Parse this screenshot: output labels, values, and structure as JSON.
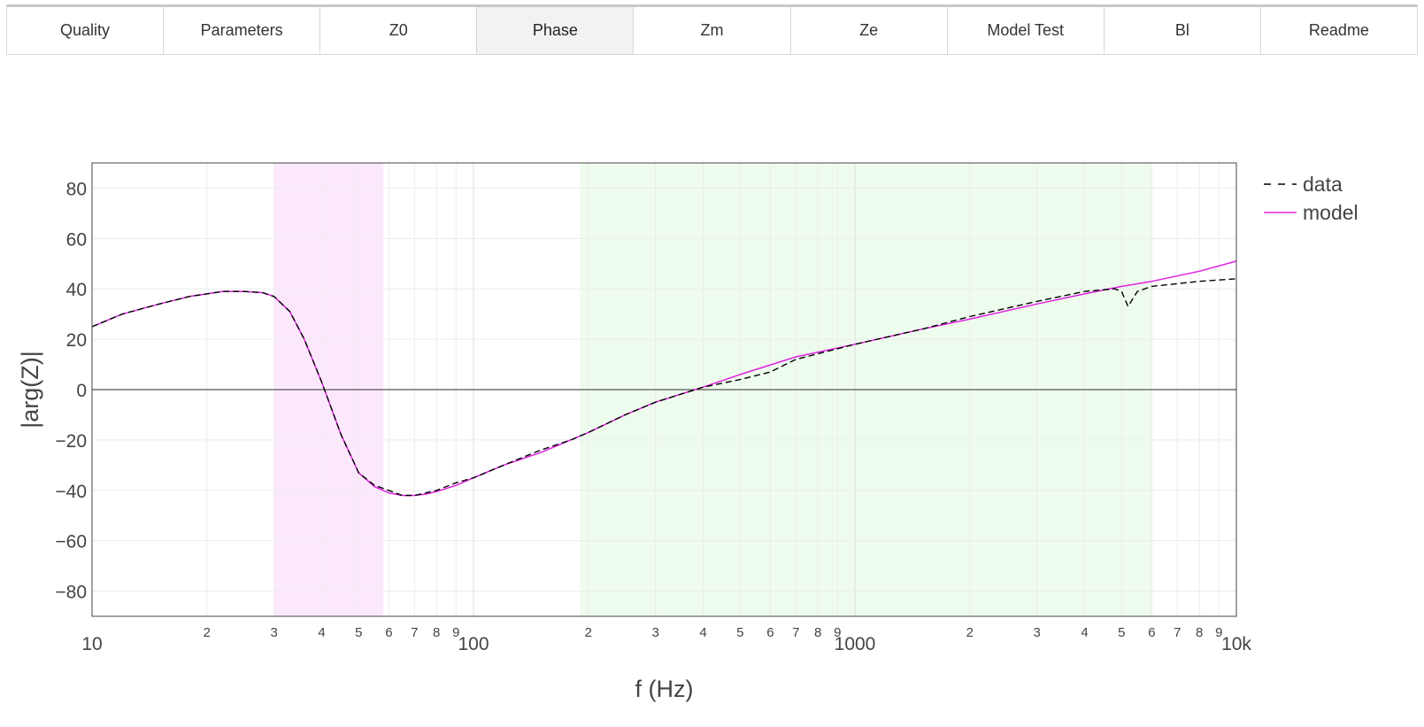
{
  "tabs": [
    {
      "label": "Quality",
      "active": false
    },
    {
      "label": "Parameters",
      "active": false
    },
    {
      "label": "Z0",
      "active": false
    },
    {
      "label": "Phase",
      "active": true
    },
    {
      "label": "Zm",
      "active": false
    },
    {
      "label": "Ze",
      "active": false
    },
    {
      "label": "Model Test",
      "active": false
    },
    {
      "label": "Bl",
      "active": false
    },
    {
      "label": "Readme",
      "active": false
    }
  ],
  "chart_data": {
    "type": "line",
    "title": "",
    "xlabel": "f (Hz)",
    "ylabel": "|arg(Z)|",
    "xscale": "log",
    "xlim": [
      10,
      10000
    ],
    "ylim": [
      -90,
      90
    ],
    "grid": true,
    "legend_position": "top-right",
    "x_major_ticks": [
      {
        "value": 10,
        "label": "10"
      },
      {
        "value": 100,
        "label": "100"
      },
      {
        "value": 1000,
        "label": "1000"
      },
      {
        "value": 10000,
        "label": "10k"
      }
    ],
    "x_minor_tick_labels": [
      "2",
      "3",
      "4",
      "5",
      "6",
      "7",
      "8",
      "9"
    ],
    "y_ticks": [
      {
        "value": 80,
        "label": "80"
      },
      {
        "value": 60,
        "label": "60"
      },
      {
        "value": 40,
        "label": "40"
      },
      {
        "value": 20,
        "label": "20"
      },
      {
        "value": 0,
        "label": "0"
      },
      {
        "value": -20,
        "label": "−20"
      },
      {
        "value": -40,
        "label": "−40"
      },
      {
        "value": -60,
        "label": "−60"
      },
      {
        "value": -80,
        "label": "−80"
      }
    ],
    "shaded_regions": [
      {
        "x0": 30,
        "x1": 58,
        "color": "#fce8fc"
      },
      {
        "x0": 190,
        "x1": 6000,
        "color": "#eefcee"
      }
    ],
    "series": [
      {
        "name": "model",
        "color": "#e020e0",
        "dash": "solid",
        "x": [
          10,
          12,
          15,
          18,
          20,
          22,
          25,
          28,
          30,
          33,
          36,
          40,
          45,
          50,
          55,
          60,
          65,
          70,
          75,
          80,
          90,
          100,
          120,
          150,
          200,
          250,
          300,
          400,
          500,
          700,
          1000,
          1500,
          2000,
          3000,
          4000,
          5000,
          6000,
          8000,
          10000
        ],
        "y": [
          25,
          30,
          34,
          37,
          38,
          39,
          39,
          38.5,
          37,
          31,
          20,
          3,
          -18,
          -33,
          -38.5,
          -41,
          -42,
          -42,
          -41.5,
          -40.5,
          -38,
          -35,
          -30,
          -25,
          -17,
          -10,
          -5,
          1,
          6,
          13,
          18,
          24,
          28,
          34,
          38,
          41,
          43,
          47,
          51
        ]
      },
      {
        "name": "data",
        "color": "#000000",
        "dash": "dashed",
        "x": [
          10,
          12,
          15,
          18,
          20,
          22,
          25,
          28,
          30,
          33,
          36,
          40,
          45,
          50,
          55,
          60,
          65,
          70,
          75,
          80,
          90,
          100,
          120,
          150,
          180,
          200,
          250,
          300,
          400,
          500,
          600,
          700,
          1000,
          1500,
          2000,
          3000,
          4000,
          4800,
          5000,
          5200,
          5500,
          6000,
          8000,
          10000
        ],
        "y": [
          25,
          30,
          34,
          37,
          38,
          39,
          39,
          38.5,
          37,
          31,
          20,
          3,
          -18,
          -33,
          -38,
          -40,
          -42,
          -42,
          -41,
          -40,
          -37,
          -35,
          -30,
          -24,
          -20,
          -17,
          -10,
          -5,
          1,
          4,
          7,
          12,
          18,
          24,
          29,
          35,
          39,
          40,
          39,
          33,
          39,
          41,
          43,
          44
        ]
      }
    ]
  }
}
